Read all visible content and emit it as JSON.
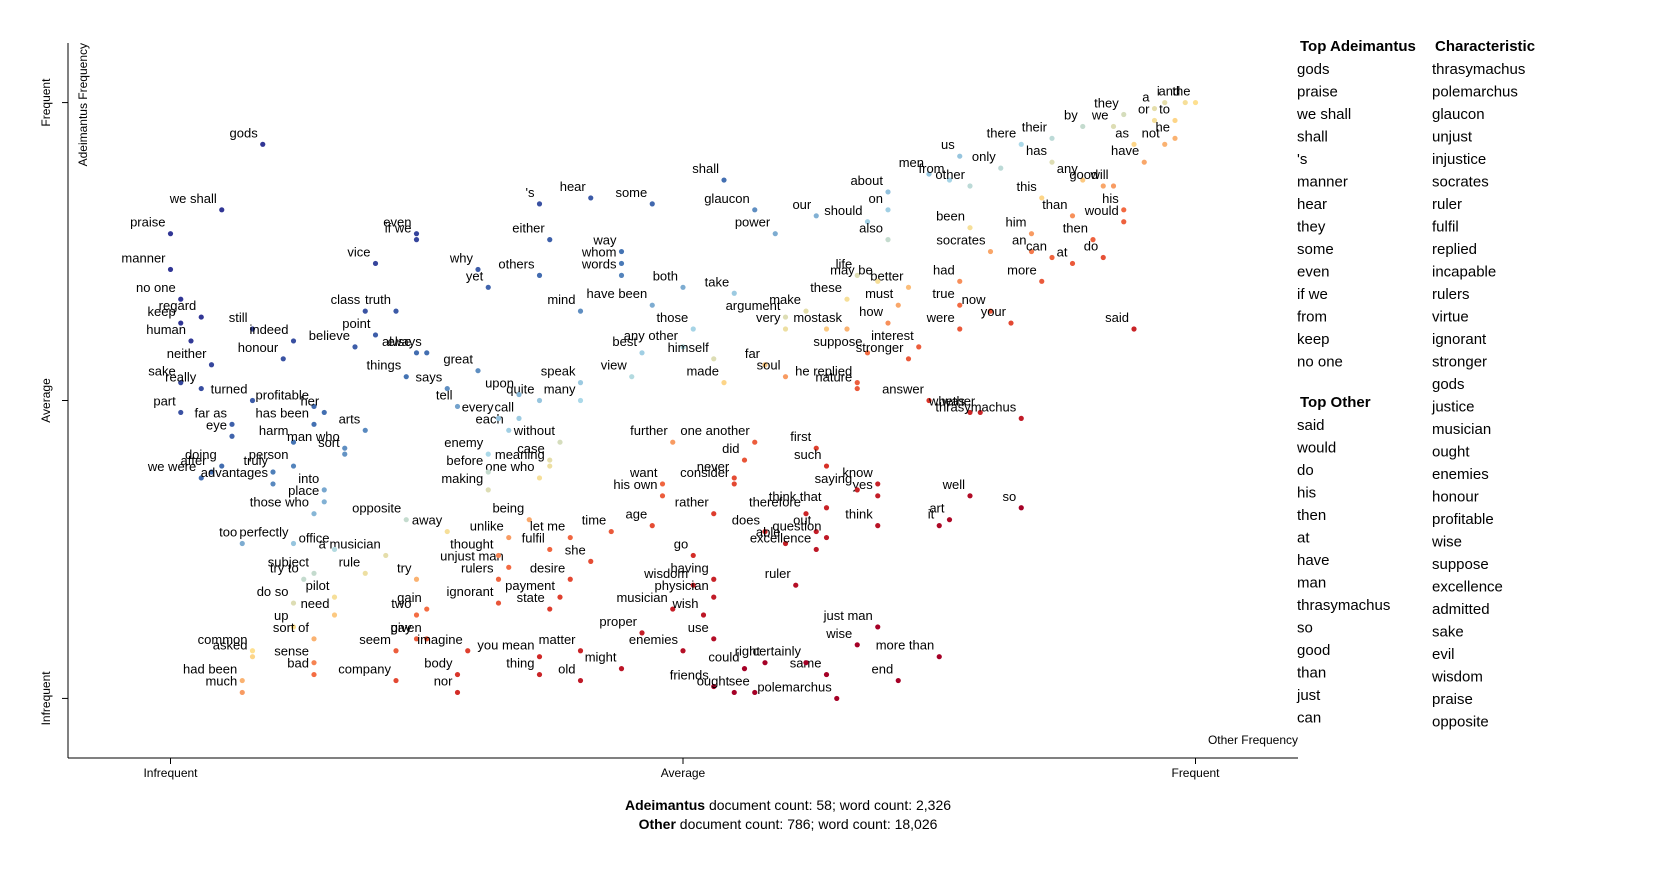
{
  "chart_data": {
    "type": "scatter",
    "x_label": "Other Frequency",
    "y_label": "Adeimantus Frequency",
    "xlim": [
      -0.1,
      1.1
    ],
    "ylim": [
      -0.1,
      1.1
    ],
    "xticks": [
      {
        "value": 0,
        "label": "Infrequent"
      },
      {
        "value": 0.5,
        "label": "Average"
      },
      {
        "value": 1,
        "label": "Frequent"
      }
    ],
    "yticks": [
      {
        "value": 0,
        "label": "Infrequent"
      },
      {
        "value": 0.5,
        "label": "Average"
      },
      {
        "value": 1,
        "label": "Frequent"
      }
    ],
    "color_scale": {
      "domain": [
        -0.5,
        -0.25,
        -0.1,
        0,
        0.1,
        0.3,
        0.6
      ],
      "colors": [
        "#a50026",
        "#d73027",
        "#f46d43",
        "#fee090",
        "#abd9e9",
        "#4575b4",
        "#313695"
      ]
    },
    "labels": [
      "gods",
      "we shall",
      "praise",
      "manner",
      "no one",
      "regard",
      "keep",
      "still",
      "indeed",
      "human",
      "neither",
      "honour",
      "sake",
      "really",
      "turned",
      "part",
      "far as",
      "profitable",
      "her",
      "has been",
      "eye",
      "arts",
      "harm",
      "sort",
      "we were",
      "doing",
      "man who",
      "after",
      "truly",
      "person",
      "into",
      "advantages",
      "place",
      "those who",
      "opposite",
      "a musician",
      "too",
      "perfectly",
      "office",
      "rule",
      "away",
      "try to",
      "subject",
      "do so",
      "pilot",
      "need",
      "common",
      "up",
      "sort of",
      "asked",
      "sense",
      "had been",
      "bad",
      "much",
      "seem",
      "company",
      "pay",
      "two",
      "gain",
      "try",
      "given",
      "imagine",
      "body",
      "nor",
      "ignorant",
      "unjust man",
      "rulers",
      "thought",
      "unlike",
      "being",
      "let me",
      "fulfil",
      "she",
      "time",
      "age",
      "desire",
      "payment",
      "state",
      "you mean",
      "thing",
      "matter",
      "old",
      "might",
      "proper",
      "musician",
      "wisdom",
      "enemies",
      "friends",
      "use",
      "could",
      "right",
      "ought",
      "see",
      "polemarchus",
      "same",
      "certainly",
      "just man",
      "wise",
      "more than",
      "end",
      "having",
      "physician",
      "wish",
      "ruler",
      "go",
      "does",
      "able",
      "out",
      "question",
      "excellence",
      "rather",
      "therefore",
      "yes",
      "think",
      "it",
      "art",
      "well",
      "so",
      "know",
      "saying",
      "think that",
      "consider",
      "his own",
      "want",
      "never",
      "did",
      "further",
      "one another",
      "first",
      "such",
      "without",
      "case",
      "meaning",
      "one who",
      "making",
      "before",
      "enemy",
      "each",
      "every",
      "tell",
      "call",
      "many",
      "quite",
      "upon",
      "great",
      "speak",
      "says",
      "things",
      "else",
      "always",
      "point",
      "believe",
      "class",
      "truth",
      "vice",
      "if we",
      "even",
      "why",
      "yet",
      "others",
      "either",
      "'s",
      "hear",
      "some",
      "way",
      "whom",
      "words",
      "mind",
      "both",
      "have been",
      "take",
      "those",
      "argument",
      "best",
      "any other",
      "very",
      "himself",
      "view",
      "made",
      "far",
      "soul",
      "make",
      "most",
      "ask",
      "suppose",
      "nature",
      "how",
      "must",
      "better",
      "these",
      "life",
      "may be",
      "should",
      "also",
      "on",
      "about",
      "our",
      "power",
      "shall",
      "glaucon",
      "men",
      "us",
      "from",
      "other",
      "only",
      "there",
      "their",
      "has",
      "this",
      "any",
      "good",
      "by",
      "we",
      "they",
      "as",
      "a",
      "i",
      "or",
      "and",
      "the",
      "to",
      "not",
      "he",
      "have",
      "will",
      "his",
      "would",
      "then",
      "at",
      "do",
      "than",
      "him",
      "an",
      "can",
      "been",
      "socrates",
      "had",
      "more",
      "now",
      "true",
      "were",
      "your",
      "interest",
      "stronger",
      "he replied",
      "answer",
      "was",
      "whether",
      "thrasymachus",
      "said"
    ],
    "x": [
      0.09,
      0.05,
      0.0,
      0.0,
      0.01,
      0.03,
      0.01,
      0.08,
      0.12,
      0.02,
      0.04,
      0.11,
      0.01,
      0.03,
      0.08,
      0.01,
      0.06,
      0.14,
      0.15,
      0.14,
      0.06,
      0.19,
      0.12,
      0.17,
      0.03,
      0.05,
      0.17,
      0.04,
      0.1,
      0.12,
      0.15,
      0.1,
      0.15,
      0.14,
      0.23,
      0.21,
      0.07,
      0.12,
      0.16,
      0.19,
      0.27,
      0.13,
      0.14,
      0.12,
      0.16,
      0.16,
      0.08,
      0.12,
      0.14,
      0.08,
      0.14,
      0.07,
      0.14,
      0.07,
      0.22,
      0.22,
      0.24,
      0.24,
      0.25,
      0.24,
      0.25,
      0.29,
      0.28,
      0.28,
      0.32,
      0.33,
      0.32,
      0.32,
      0.33,
      0.35,
      0.39,
      0.37,
      0.41,
      0.43,
      0.47,
      0.39,
      0.38,
      0.37,
      0.36,
      0.36,
      0.4,
      0.4,
      0.44,
      0.46,
      0.49,
      0.51,
      0.5,
      0.53,
      0.53,
      0.56,
      0.58,
      0.55,
      0.57,
      0.65,
      0.64,
      0.62,
      0.69,
      0.67,
      0.75,
      0.71,
      0.53,
      0.53,
      0.52,
      0.61,
      0.51,
      0.58,
      0.6,
      0.63,
      0.64,
      0.63,
      0.53,
      0.62,
      0.69,
      0.69,
      0.75,
      0.76,
      0.78,
      0.83,
      0.69,
      0.67,
      0.64,
      0.55,
      0.48,
      0.48,
      0.55,
      0.56,
      0.49,
      0.57,
      0.63,
      0.64,
      0.38,
      0.37,
      0.37,
      0.36,
      0.31,
      0.31,
      0.31,
      0.33,
      0.32,
      0.28,
      0.34,
      0.4,
      0.36,
      0.34,
      0.3,
      0.4,
      0.27,
      0.23,
      0.24,
      0.25,
      0.2,
      0.18,
      0.19,
      0.22,
      0.2,
      0.24,
      0.24,
      0.3,
      0.31,
      0.36,
      0.37,
      0.36,
      0.41,
      0.47,
      0.44,
      0.44,
      0.44,
      0.4,
      0.5,
      0.47,
      0.55,
      0.51,
      0.6,
      0.46,
      0.5,
      0.6,
      0.53,
      0.45,
      0.54,
      0.58,
      0.6,
      0.62,
      0.64,
      0.66,
      0.68,
      0.67,
      0.7,
      0.71,
      0.72,
      0.66,
      0.67,
      0.69,
      0.68,
      0.7,
      0.7,
      0.7,
      0.63,
      0.59,
      0.54,
      0.57,
      0.74,
      0.77,
      0.76,
      0.78,
      0.81,
      0.83,
      0.86,
      0.86,
      0.85,
      0.89,
      0.91,
      0.89,
      0.92,
      0.93,
      0.94,
      0.96,
      0.97,
      0.96,
      0.99,
      1.0,
      0.98,
      0.97,
      0.98,
      0.95,
      0.92,
      0.93,
      0.93,
      0.9,
      0.88,
      0.91,
      0.88,
      0.84,
      0.84,
      0.86,
      0.78,
      0.8,
      0.77,
      0.85,
      0.8,
      0.77,
      0.77,
      0.82,
      0.73,
      0.72,
      0.67,
      0.74,
      0.78,
      0.79,
      0.83,
      0.94
    ],
    "y": [
      0.93,
      0.82,
      0.78,
      0.72,
      0.67,
      0.64,
      0.63,
      0.62,
      0.6,
      0.6,
      0.56,
      0.57,
      0.53,
      0.52,
      0.5,
      0.48,
      0.46,
      0.49,
      0.48,
      0.46,
      0.44,
      0.45,
      0.43,
      0.41,
      0.37,
      0.39,
      0.42,
      0.38,
      0.38,
      0.39,
      0.35,
      0.36,
      0.33,
      0.31,
      0.3,
      0.24,
      0.26,
      0.26,
      0.25,
      0.21,
      0.28,
      0.2,
      0.21,
      0.16,
      0.17,
      0.14,
      0.08,
      0.12,
      0.1,
      0.07,
      0.06,
      0.03,
      0.04,
      0.01,
      0.08,
      0.03,
      0.1,
      0.14,
      0.15,
      0.2,
      0.1,
      0.08,
      0.04,
      0.01,
      0.16,
      0.22,
      0.2,
      0.24,
      0.27,
      0.3,
      0.27,
      0.25,
      0.23,
      0.28,
      0.29,
      0.2,
      0.17,
      0.15,
      0.07,
      0.04,
      0.08,
      0.03,
      0.05,
      0.11,
      0.15,
      0.19,
      0.08,
      0.02,
      0.1,
      0.05,
      0.06,
      0.01,
      0.01,
      0.0,
      0.04,
      0.06,
      0.12,
      0.09,
      0.07,
      0.03,
      0.2,
      0.17,
      0.14,
      0.19,
      0.24,
      0.28,
      0.26,
      0.28,
      0.27,
      0.25,
      0.31,
      0.31,
      0.34,
      0.29,
      0.29,
      0.3,
      0.34,
      0.32,
      0.36,
      0.35,
      0.32,
      0.36,
      0.34,
      0.36,
      0.37,
      0.4,
      0.43,
      0.43,
      0.42,
      0.39,
      0.43,
      0.4,
      0.39,
      0.37,
      0.35,
      0.38,
      0.41,
      0.45,
      0.47,
      0.49,
      0.47,
      0.5,
      0.5,
      0.51,
      0.55,
      0.53,
      0.52,
      0.54,
      0.58,
      0.58,
      0.61,
      0.59,
      0.65,
      0.65,
      0.73,
      0.77,
      0.78,
      0.72,
      0.69,
      0.71,
      0.77,
      0.83,
      0.84,
      0.83,
      0.75,
      0.73,
      0.71,
      0.65,
      0.69,
      0.66,
      0.68,
      0.62,
      0.64,
      0.58,
      0.59,
      0.62,
      0.57,
      0.54,
      0.53,
      0.56,
      0.54,
      0.65,
      0.62,
      0.62,
      0.58,
      0.52,
      0.63,
      0.66,
      0.69,
      0.67,
      0.71,
      0.7,
      0.8,
      0.77,
      0.82,
      0.85,
      0.81,
      0.78,
      0.87,
      0.82,
      0.88,
      0.91,
      0.87,
      0.86,
      0.89,
      0.93,
      0.94,
      0.9,
      0.84,
      0.87,
      0.86,
      0.96,
      0.96,
      0.98,
      0.93,
      0.99,
      1.0,
      0.97,
      1.0,
      1.0,
      0.97,
      0.93,
      0.94,
      0.9,
      0.86,
      0.82,
      0.8,
      0.77,
      0.73,
      0.74,
      0.81,
      0.78,
      0.75,
      0.74,
      0.79,
      0.75,
      0.7,
      0.7,
      0.65,
      0.66,
      0.62,
      0.63,
      0.59,
      0.57,
      0.53,
      0.5,
      0.48,
      0.48,
      0.47,
      0.62
    ],
    "lists": [
      {
        "title": "Top Adeimantus",
        "words": [
          "gods",
          "praise",
          "we shall",
          "shall",
          "'s",
          "manner",
          "hear",
          "they",
          "some",
          "even",
          "if we",
          "from",
          "keep",
          "no one"
        ]
      },
      {
        "title": "Characteristic",
        "words": [
          "thrasymachus",
          "polemarchus",
          "glaucon",
          "unjust",
          "injustice",
          "socrates",
          "ruler",
          "fulfil",
          "replied",
          "incapable",
          "rulers",
          "virtue",
          "ignorant",
          "stronger",
          "gods",
          "justice",
          "musician",
          "ought",
          "enemies",
          "honour",
          "profitable",
          "wise",
          "suppose",
          "excellence",
          "admitted",
          "sake",
          "evil",
          "wisdom",
          "praise",
          "opposite"
        ]
      },
      {
        "title": "Top Other",
        "words": [
          "said",
          "would",
          "do",
          "his",
          "then",
          "at",
          "have",
          "man",
          "thrasymachus",
          "so",
          "good",
          "than",
          "just",
          "can"
        ]
      }
    ],
    "footer": [
      {
        "name": "Adeimantus",
        "text": "document count: 58; word count: 2,326"
      },
      {
        "name": "Other",
        "text": "document count: 786; word count: 18,026"
      }
    ]
  }
}
